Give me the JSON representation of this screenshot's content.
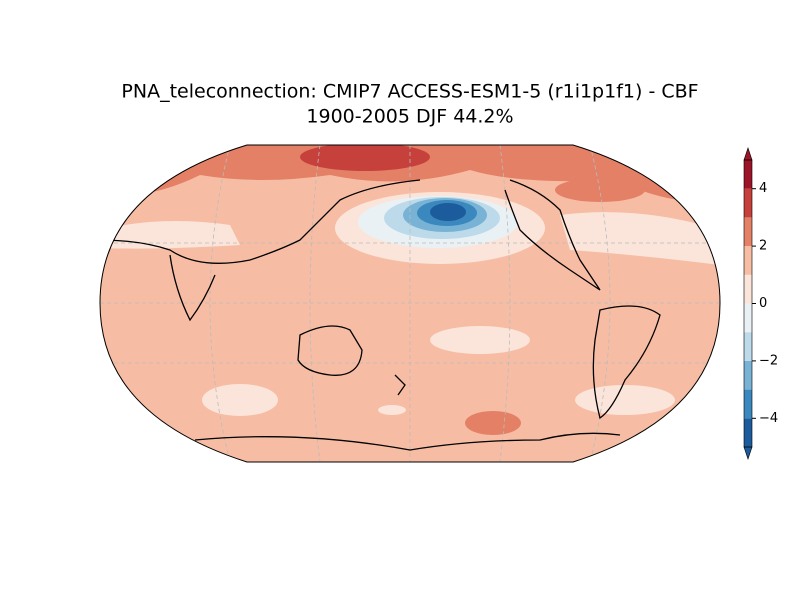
{
  "title": [
    "PNA_teleconnection: CMIP7 ACCESS-ESM1-5 (r1i1p1f1) - CBF",
    "1900-2005 DJF 44.2%"
  ],
  "colorbar": {
    "lim": [
      -5,
      5
    ],
    "levels": [
      -5,
      -4,
      -3,
      -2,
      -1,
      0,
      1,
      2,
      3,
      4,
      5
    ],
    "colors": [
      "#1c5c9c",
      "#3b88be",
      "#78b3d6",
      "#bcdaea",
      "#e9f1f5",
      "#fbe5da",
      "#f6bda4",
      "#e48066",
      "#c6403c",
      "#9c1428"
    ],
    "ticks": [
      {
        "value": -4,
        "label": "−4"
      },
      {
        "value": -2,
        "label": "−2"
      },
      0,
      2,
      4
    ]
  }
}
